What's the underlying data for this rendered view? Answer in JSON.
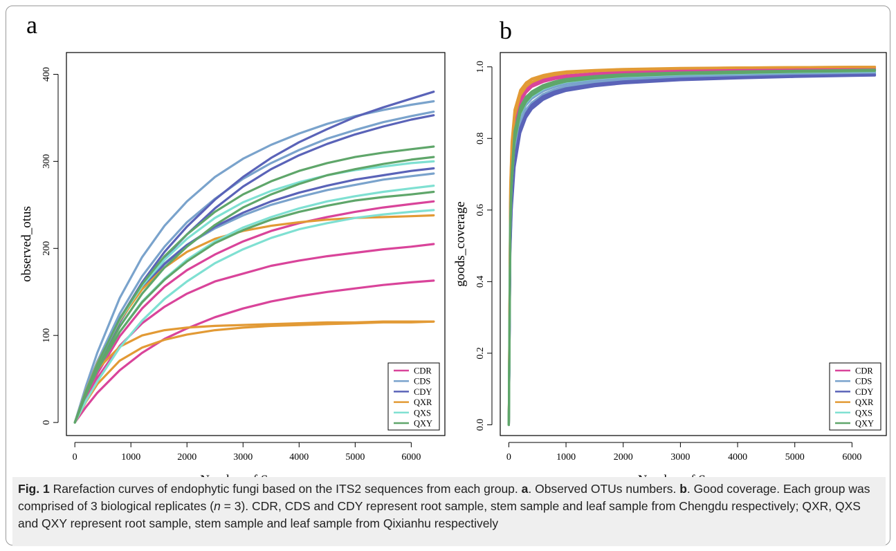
{
  "caption": {
    "fig_label": "Fig. 1",
    "t1": "  Rarefaction curves of endophytic fungi based on the ITS2 sequences from each group. ",
    "a": "a",
    "t2": ". Observed OTUs numbers. ",
    "b": "b",
    "t3": ". Good coverage. Each group was comprised of 3 biological replicates (",
    "n": "n",
    "t4": " = 3). CDR, CDS and CDY represent root sample, stem sample and leaf sample from Chengdu respectively; QXR, QXS and QXY represent root sample, stem sample and leaf sample from Qixianhu respectively"
  },
  "colors": {
    "CDR": "#d9449a",
    "CDS": "#7aa3cc",
    "CDY": "#5a63b8",
    "QXR": "#e29a35",
    "QXS": "#7fe0d2",
    "QXY": "#5fa66a"
  },
  "chart_data": [
    {
      "type": "line",
      "panel": "a",
      "xlabel": "Number of Sequence",
      "ylabel": "observed_otus",
      "xlim": [
        -150,
        6600
      ],
      "ylim": [
        -15,
        425
      ],
      "xticks": [
        0,
        1000,
        2000,
        3000,
        4000,
        5000,
        6000
      ],
      "yticks": [
        0,
        100,
        200,
        300,
        400
      ],
      "legend": [
        "CDR",
        "CDS",
        "CDY",
        "QXR",
        "QXS",
        "QXY"
      ],
      "legend_position": "bottom-right",
      "x": [
        0,
        200,
        400,
        800,
        1200,
        1600,
        2000,
        2500,
        3000,
        3500,
        4000,
        4500,
        5000,
        5500,
        6000,
        6400
      ],
      "series": [
        {
          "group": "CDR",
          "values": [
            0,
            27,
            51,
            88,
            114,
            133,
            148,
            162,
            171,
            180,
            186,
            191,
            195,
            199,
            202,
            205
          ]
        },
        {
          "group": "CDR",
          "values": [
            0,
            18,
            34,
            60,
            80,
            96,
            108,
            121,
            131,
            139,
            145,
            150,
            154,
            158,
            161,
            163
          ]
        },
        {
          "group": "CDR",
          "values": [
            0,
            30,
            56,
            99,
            131,
            156,
            175,
            193,
            208,
            220,
            229,
            236,
            242,
            247,
            251,
            254
          ]
        },
        {
          "group": "CDS",
          "values": [
            0,
            42,
            80,
            143,
            190,
            226,
            254,
            282,
            303,
            319,
            332,
            343,
            352,
            359,
            365,
            369
          ]
        },
        {
          "group": "CDS",
          "values": [
            0,
            37,
            70,
            125,
            168,
            202,
            230,
            257,
            280,
            298,
            313,
            326,
            336,
            345,
            352,
            357
          ]
        },
        {
          "group": "CDS",
          "values": [
            0,
            38,
            70,
            120,
            156,
            183,
            204,
            223,
            238,
            250,
            259,
            267,
            273,
            279,
            283,
            286
          ]
        },
        {
          "group": "CDY",
          "values": [
            0,
            35,
            66,
            119,
            161,
            196,
            225,
            256,
            282,
            304,
            322,
            337,
            351,
            362,
            372,
            380
          ]
        },
        {
          "group": "CDY",
          "values": [
            0,
            34,
            64,
            115,
            156,
            189,
            216,
            246,
            271,
            291,
            307,
            320,
            331,
            340,
            348,
            353
          ]
        },
        {
          "group": "CDY",
          "values": [
            0,
            36,
            67,
            117,
            154,
            182,
            204,
            225,
            241,
            254,
            264,
            272,
            279,
            284,
            289,
            292
          ]
        },
        {
          "group": "QXR",
          "values": [
            0,
            36,
            61,
            87,
            100,
            106,
            109,
            111,
            112,
            113,
            114,
            115,
            115,
            116,
            116,
            116
          ]
        },
        {
          "group": "QXR",
          "values": [
            0,
            24,
            44,
            71,
            86,
            95,
            101,
            106,
            109,
            111,
            112,
            113,
            114,
            115,
            115,
            116
          ]
        },
        {
          "group": "QXR",
          "values": [
            0,
            37,
            68,
            117,
            153,
            178,
            196,
            211,
            220,
            226,
            230,
            233,
            235,
            236,
            237,
            238
          ]
        },
        {
          "group": "QXS",
          "values": [
            0,
            36,
            67,
            118,
            157,
            187,
            211,
            235,
            253,
            266,
            276,
            284,
            290,
            294,
            298,
            300
          ]
        },
        {
          "group": "QXS",
          "values": [
            0,
            32,
            60,
            104,
            139,
            165,
            187,
            208,
            224,
            236,
            246,
            254,
            260,
            265,
            269,
            272
          ]
        },
        {
          "group": "QXS",
          "values": [
            0,
            25,
            47,
            86,
            117,
            142,
            162,
            183,
            199,
            212,
            222,
            229,
            235,
            239,
            242,
            244
          ]
        },
        {
          "group": "QXY",
          "values": [
            0,
            36,
            67,
            119,
            159,
            191,
            216,
            242,
            262,
            277,
            289,
            298,
            305,
            310,
            314,
            317
          ]
        },
        {
          "group": "QXY",
          "values": [
            0,
            33,
            62,
            110,
            148,
            178,
            202,
            227,
            247,
            262,
            274,
            284,
            291,
            297,
            302,
            305
          ]
        },
        {
          "group": "QXY",
          "values": [
            0,
            32,
            60,
            104,
            138,
            164,
            185,
            206,
            221,
            233,
            242,
            249,
            255,
            259,
            262,
            265
          ]
        }
      ]
    },
    {
      "type": "line",
      "panel": "b",
      "xlabel": "Number of Sequence",
      "ylabel": "goods_coverage",
      "xlim": [
        -150,
        6600
      ],
      "ylim": [
        -0.03,
        1.04
      ],
      "xticks": [
        0,
        1000,
        2000,
        3000,
        4000,
        5000,
        6000
      ],
      "yticks": [
        "0.0",
        "0.2",
        "0.4",
        "0.6",
        "0.8",
        "1.0"
      ],
      "legend": [
        "CDR",
        "CDS",
        "CDY",
        "QXR",
        "QXS",
        "QXY"
      ],
      "legend_position": "bottom-right",
      "x": [
        0,
        25,
        50,
        100,
        200,
        300,
        400,
        600,
        800,
        1000,
        1500,
        2000,
        3000,
        4000,
        5000,
        6000,
        6400
      ],
      "series": [
        {
          "group": "CDR",
          "values": [
            0,
            0.62,
            0.74,
            0.84,
            0.91,
            0.935,
            0.95,
            0.963,
            0.97,
            0.974,
            0.98,
            0.984,
            0.988,
            0.99,
            0.992,
            0.993,
            0.994
          ]
        },
        {
          "group": "CDR",
          "values": [
            0,
            0.63,
            0.75,
            0.85,
            0.915,
            0.94,
            0.953,
            0.965,
            0.972,
            0.976,
            0.982,
            0.986,
            0.99,
            0.992,
            0.994,
            0.995,
            0.995
          ]
        },
        {
          "group": "CDR",
          "values": [
            0,
            0.6,
            0.72,
            0.83,
            0.9,
            0.928,
            0.944,
            0.958,
            0.966,
            0.971,
            0.978,
            0.982,
            0.987,
            0.989,
            0.991,
            0.992,
            0.993
          ]
        },
        {
          "group": "CDS",
          "values": [
            0,
            0.5,
            0.62,
            0.74,
            0.83,
            0.87,
            0.893,
            0.918,
            0.932,
            0.941,
            0.953,
            0.96,
            0.968,
            0.972,
            0.976,
            0.978,
            0.979
          ]
        },
        {
          "group": "CDS",
          "values": [
            0,
            0.52,
            0.64,
            0.76,
            0.845,
            0.88,
            0.9,
            0.924,
            0.937,
            0.946,
            0.957,
            0.964,
            0.971,
            0.975,
            0.978,
            0.98,
            0.981
          ]
        },
        {
          "group": "CDS",
          "values": [
            0,
            0.54,
            0.66,
            0.78,
            0.86,
            0.893,
            0.911,
            0.932,
            0.944,
            0.952,
            0.962,
            0.968,
            0.975,
            0.978,
            0.981,
            0.983,
            0.984
          ]
        },
        {
          "group": "CDY",
          "values": [
            0,
            0.48,
            0.6,
            0.72,
            0.815,
            0.858,
            0.882,
            0.908,
            0.923,
            0.933,
            0.946,
            0.954,
            0.963,
            0.968,
            0.972,
            0.975,
            0.976
          ]
        },
        {
          "group": "CDY",
          "values": [
            0,
            0.49,
            0.61,
            0.73,
            0.822,
            0.864,
            0.888,
            0.913,
            0.927,
            0.937,
            0.949,
            0.957,
            0.965,
            0.97,
            0.974,
            0.976,
            0.977
          ]
        },
        {
          "group": "CDY",
          "values": [
            0,
            0.5,
            0.62,
            0.74,
            0.83,
            0.87,
            0.894,
            0.918,
            0.931,
            0.94,
            0.952,
            0.959,
            0.967,
            0.971,
            0.975,
            0.977,
            0.978
          ]
        },
        {
          "group": "QXR",
          "values": [
            0,
            0.66,
            0.78,
            0.87,
            0.93,
            0.952,
            0.964,
            0.975,
            0.981,
            0.985,
            0.99,
            0.993,
            0.996,
            0.998,
            0.999,
            1.0,
            1.0
          ]
        },
        {
          "group": "QXR",
          "values": [
            0,
            0.67,
            0.79,
            0.88,
            0.935,
            0.956,
            0.967,
            0.977,
            0.983,
            0.987,
            0.991,
            0.994,
            0.997,
            0.998,
            0.999,
            1.0,
            1.0
          ]
        },
        {
          "group": "QXR",
          "values": [
            0,
            0.64,
            0.76,
            0.86,
            0.92,
            0.944,
            0.957,
            0.97,
            0.977,
            0.982,
            0.988,
            0.991,
            0.995,
            0.997,
            0.998,
            0.999,
            0.999
          ]
        },
        {
          "group": "QXS",
          "values": [
            0,
            0.55,
            0.67,
            0.79,
            0.868,
            0.9,
            0.918,
            0.938,
            0.95,
            0.958,
            0.967,
            0.973,
            0.979,
            0.982,
            0.985,
            0.987,
            0.988
          ]
        },
        {
          "group": "QXS",
          "values": [
            0,
            0.56,
            0.68,
            0.8,
            0.875,
            0.905,
            0.922,
            0.942,
            0.953,
            0.961,
            0.969,
            0.975,
            0.981,
            0.984,
            0.986,
            0.988,
            0.989
          ]
        },
        {
          "group": "QXS",
          "values": [
            0,
            0.57,
            0.69,
            0.81,
            0.88,
            0.91,
            0.926,
            0.945,
            0.956,
            0.963,
            0.971,
            0.977,
            0.982,
            0.985,
            0.987,
            0.989,
            0.99
          ]
        },
        {
          "group": "QXY",
          "values": [
            0,
            0.55,
            0.67,
            0.79,
            0.87,
            0.902,
            0.92,
            0.94,
            0.951,
            0.959,
            0.968,
            0.974,
            0.98,
            0.983,
            0.986,
            0.988,
            0.989
          ]
        },
        {
          "group": "QXY",
          "values": [
            0,
            0.56,
            0.68,
            0.8,
            0.876,
            0.907,
            0.924,
            0.943,
            0.954,
            0.962,
            0.97,
            0.976,
            0.982,
            0.985,
            0.987,
            0.989,
            0.99
          ]
        },
        {
          "group": "QXY",
          "values": [
            0,
            0.58,
            0.7,
            0.82,
            0.888,
            0.916,
            0.931,
            0.949,
            0.959,
            0.966,
            0.974,
            0.979,
            0.984,
            0.987,
            0.989,
            0.991,
            0.992
          ]
        }
      ]
    }
  ]
}
